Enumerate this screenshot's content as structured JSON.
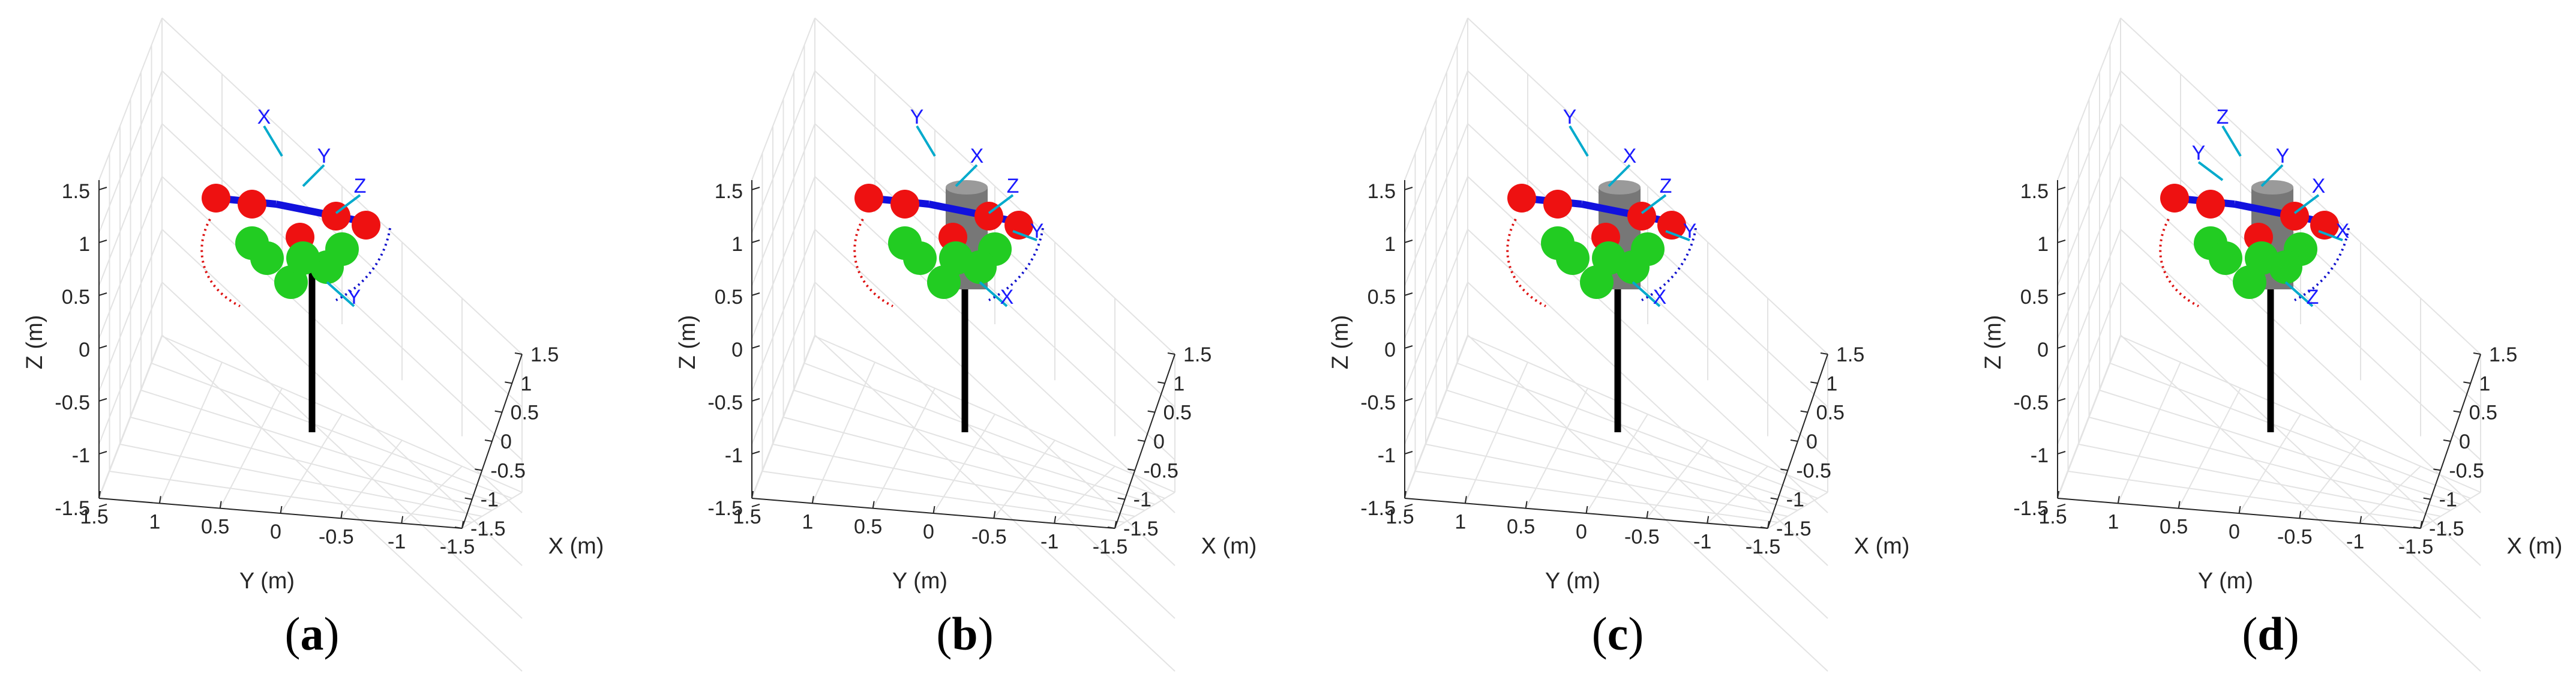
{
  "figure": {
    "panels": [
      {
        "label_open": "(",
        "label_letter": "a",
        "label_close": ")",
        "frame_labels": [
          {
            "text": "X"
          },
          {
            "text": "Y"
          },
          {
            "text": "Z"
          },
          {
            "text": "Y"
          }
        ]
      },
      {
        "label_open": "(",
        "label_letter": "b",
        "label_close": ")",
        "frame_labels": [
          {
            "text": "Y"
          },
          {
            "text": "X"
          },
          {
            "text": "Z"
          },
          {
            "text": "X"
          },
          {
            "text": "Y"
          }
        ]
      },
      {
        "label_open": "(",
        "label_letter": "c",
        "label_close": ")",
        "frame_labels": [
          {
            "text": "Y"
          },
          {
            "text": "X"
          },
          {
            "text": "Z"
          },
          {
            "text": "X"
          },
          {
            "text": "Y"
          }
        ]
      },
      {
        "label_open": "(",
        "label_letter": "d",
        "label_close": ")",
        "frame_labels": [
          {
            "text": "Z"
          },
          {
            "text": "Y"
          },
          {
            "text": "X"
          },
          {
            "text": "Z"
          },
          {
            "text": "X"
          },
          {
            "text": "Y"
          }
        ]
      }
    ],
    "axes": {
      "xlabel": "X (m)",
      "ylabel": "Y (m)",
      "zlabel": "Z (m)",
      "x_ticks": [
        "1.5",
        "1",
        "0.5",
        "0",
        "-0.5",
        "-1",
        "-1.5"
      ],
      "y_ticks": [
        "1.5",
        "1",
        "0.5",
        "0",
        "-0.5",
        "-1",
        "-1.5"
      ],
      "z_ticks": [
        "1.5",
        "1",
        "0.5",
        "0",
        "-0.5",
        "-1",
        "-1.5"
      ]
    },
    "colors": {
      "sphere": "#22cc22",
      "joint": "#ee1111",
      "link": "#1111dd",
      "pole": "#000000",
      "cylinder": "#777777",
      "trajectory_red": "#dd1111",
      "trajectory_blue": "#1111cc"
    }
  }
}
